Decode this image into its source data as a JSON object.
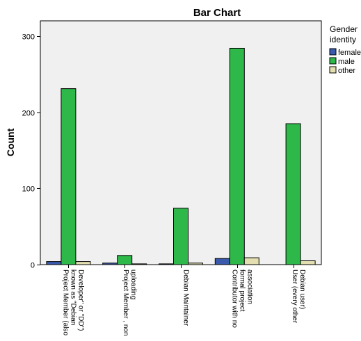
{
  "chart_data": {
    "type": "bar",
    "title": "Bar Chart",
    "xlabel": "",
    "ylabel": "Count",
    "ylim": [
      0,
      320
    ],
    "yticks": [
      0,
      100,
      200,
      300
    ],
    "grid": false,
    "legend_placement": "right",
    "legend_title": [
      "Gender",
      "identity"
    ],
    "categories": [
      [
        "Project Member (also",
        "known as \"Debian",
        "Developer\" or \"DD\")"
      ],
      [
        "Project Member , non",
        "uploading"
      ],
      [
        "Debian Maintainer"
      ],
      [
        "Contributor with no",
        "formal project",
        "association"
      ],
      [
        "User (every other",
        "Debian user)"
      ]
    ],
    "series": [
      {
        "name": "female",
        "color": "#3a5bad",
        "values": [
          4,
          2,
          1,
          8,
          0
        ]
      },
      {
        "name": "male",
        "color": "#2eb84a",
        "values": [
          231,
          12,
          74,
          284,
          185
        ]
      },
      {
        "name": "other",
        "color": "#e3dfb0",
        "values": [
          4,
          1,
          2,
          9,
          5
        ]
      }
    ],
    "plot_background": "#f0f0f0"
  }
}
